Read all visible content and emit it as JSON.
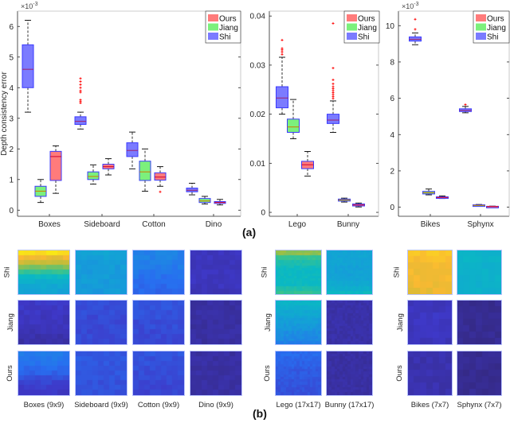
{
  "figure_labels": {
    "a": "(a)",
    "b": "(b)"
  },
  "colors": {
    "Ours": "#ff7b7b",
    "Jiang": "#7cf07c",
    "Shi": "#7b7bff",
    "box_edge": "#3a3aff",
    "median_Ours": "#cc0033",
    "median_Jiang": "#cc7a00",
    "median_Shi": "#a0206a",
    "outlier": "#ff0000",
    "whisker": "#000000"
  },
  "chart_data": [
    {
      "type": "box",
      "title": "",
      "ylabel": "Depth consistency error",
      "xlabel": "",
      "exponent_label": "×10-3",
      "scale": 0.001,
      "ylim": [
        -0.2,
        6.5
      ],
      "yticks": [
        0,
        1,
        2,
        3,
        4,
        5,
        6
      ],
      "ytick_labels": [
        "0",
        "1",
        "2",
        "3",
        "4",
        "5",
        "6"
      ],
      "categories": [
        "Boxes",
        "Sideboard",
        "Cotton",
        "Dino"
      ],
      "legend": {
        "entries": [
          "Ours",
          "Jiang",
          "Shi"
        ],
        "placement": "top-right"
      },
      "series": [
        {
          "name": "Shi",
          "boxes": [
            {
              "min": 3.2,
              "q1": 4.0,
              "median": 4.6,
              "q3": 5.4,
              "max": 6.2,
              "outliers": []
            },
            {
              "min": 2.65,
              "q1": 2.8,
              "median": 2.9,
              "q3": 3.05,
              "max": 3.2,
              "outliers": [
                3.5,
                3.55,
                3.6,
                3.85,
                3.9,
                4.0,
                4.1,
                4.2,
                4.3
              ]
            },
            {
              "min": 1.35,
              "q1": 1.75,
              "median": 1.95,
              "q3": 2.2,
              "max": 2.55,
              "outliers": []
            },
            {
              "min": 0.5,
              "q1": 0.6,
              "median": 0.65,
              "q3": 0.72,
              "max": 0.88,
              "outliers": []
            }
          ]
        },
        {
          "name": "Jiang",
          "boxes": [
            {
              "min": 0.25,
              "q1": 0.45,
              "median": 0.62,
              "q3": 0.78,
              "max": 1.0,
              "outliers": []
            },
            {
              "min": 0.85,
              "q1": 1.0,
              "median": 1.1,
              "q3": 1.25,
              "max": 1.48,
              "outliers": []
            },
            {
              "min": 0.62,
              "q1": 0.97,
              "median": 1.25,
              "q3": 1.6,
              "max": 2.0,
              "outliers": []
            },
            {
              "min": 0.2,
              "q1": 0.25,
              "median": 0.3,
              "q3": 0.38,
              "max": 0.45,
              "outliers": []
            }
          ]
        },
        {
          "name": "Ours",
          "boxes": [
            {
              "min": 0.55,
              "q1": 0.97,
              "median": 1.75,
              "q3": 1.92,
              "max": 2.1,
              "outliers": []
            },
            {
              "min": 1.15,
              "q1": 1.35,
              "median": 1.42,
              "q3": 1.5,
              "max": 1.68,
              "outliers": []
            },
            {
              "min": 0.78,
              "q1": 0.98,
              "median": 1.08,
              "q3": 1.22,
              "max": 1.42,
              "outliers": [
                0.6
              ]
            },
            {
              "min": 0.17,
              "q1": 0.22,
              "median": 0.25,
              "q3": 0.28,
              "max": 0.35,
              "outliers": []
            }
          ]
        }
      ]
    },
    {
      "type": "box",
      "title": "",
      "ylabel": "",
      "exponent_label": "",
      "scale": 1,
      "ylim": [
        -0.0008,
        0.041
      ],
      "yticks": [
        0,
        0.01,
        0.02,
        0.03,
        0.04
      ],
      "ytick_labels": [
        "0",
        "0.01",
        "0.02",
        "0.03",
        "0.04"
      ],
      "categories": [
        "Lego",
        "Bunny"
      ],
      "legend": {
        "entries": [
          "Ours",
          "Jiang",
          "Shi"
        ],
        "placement": "top-right"
      },
      "series": [
        {
          "name": "Shi",
          "boxes": [
            {
              "min": 0.02,
              "q1": 0.0213,
              "median": 0.0233,
              "q3": 0.0256,
              "max": 0.0316,
              "outliers": [
                0.0322,
                0.0327,
                0.0331,
                0.0334,
                0.0351
              ]
            },
            {
              "min": 0.0163,
              "q1": 0.0181,
              "median": 0.0188,
              "q3": 0.02,
              "max": 0.0227,
              "outliers": [
                0.0232,
                0.0236,
                0.024,
                0.0244,
                0.0248,
                0.0252,
                0.0256,
                0.0262,
                0.027,
                0.0294,
                0.0385
              ]
            }
          ]
        },
        {
          "name": "Jiang",
          "boxes": [
            {
              "min": 0.015,
              "q1": 0.0163,
              "median": 0.0174,
              "q3": 0.019,
              "max": 0.023,
              "outliers": []
            },
            {
              "min": 0.0021,
              "q1": 0.0023,
              "median": 0.0025,
              "q3": 0.0027,
              "max": 0.0029,
              "outliers": []
            }
          ]
        },
        {
          "name": "Ours",
          "boxes": [
            {
              "min": 0.0074,
              "q1": 0.0089,
              "median": 0.0097,
              "q3": 0.0104,
              "max": 0.0124,
              "outliers": []
            },
            {
              "min": 0.0011,
              "q1": 0.0013,
              "median": 0.0015,
              "q3": 0.0017,
              "max": 0.0019,
              "outliers": []
            }
          ]
        }
      ]
    },
    {
      "type": "box",
      "title": "",
      "ylabel": "",
      "exponent_label": "×10-3",
      "scale": 0.001,
      "ylim": [
        -0.5,
        10.8
      ],
      "yticks": [
        0,
        2,
        4,
        6,
        8,
        10
      ],
      "ytick_labels": [
        "0",
        "2",
        "4",
        "6",
        "8",
        "10"
      ],
      "categories": [
        "Bikes",
        "Sphynx"
      ],
      "legend": {
        "entries": [
          "Ours",
          "Jiang",
          "Shi"
        ],
        "placement": "top-right"
      },
      "series": [
        {
          "name": "Shi",
          "boxes": [
            {
              "min": 8.95,
              "q1": 9.15,
              "median": 9.25,
              "q3": 9.38,
              "max": 9.6,
              "outliers": [
                9.8,
                10.35
              ]
            },
            {
              "min": 5.2,
              "q1": 5.27,
              "median": 5.33,
              "q3": 5.42,
              "max": 5.55,
              "outliers": [
                5.65
              ]
            }
          ]
        },
        {
          "name": "Jiang",
          "boxes": [
            {
              "min": 0.68,
              "q1": 0.73,
              "median": 0.8,
              "q3": 0.87,
              "max": 1.0,
              "outliers": []
            },
            {
              "min": 0.06,
              "q1": 0.08,
              "median": 0.1,
              "q3": 0.13,
              "max": 0.15,
              "outliers": []
            }
          ]
        },
        {
          "name": "Ours",
          "boxes": [
            {
              "min": 0.48,
              "q1": 0.51,
              "median": 0.54,
              "q3": 0.57,
              "max": 0.62,
              "outliers": []
            },
            {
              "min": 0.02,
              "q1": 0.03,
              "median": 0.04,
              "q3": 0.05,
              "max": 0.06,
              "outliers": []
            }
          ]
        }
      ]
    },
    {
      "type": "heatmap",
      "row_labels": [
        "Shi",
        "Jiang",
        "Ours"
      ],
      "groups": [
        {
          "columns": [
            {
              "label": "Boxes (9x9)",
              "grid": 9,
              "levels": {
                "Shi": [
                  0.95,
                  0.85,
                  0.8,
                  0.7,
                  0.6,
                  0.5,
                  0.45,
                  0.42,
                  0.4
                ],
                "Jiang": [
                  0.12,
                  0.12,
                  0.11,
                  0.1,
                  0.1,
                  0.09,
                  0.08,
                  0.07,
                  0.06
                ],
                "Ours": [
                  0.28,
                  0.27,
                  0.26,
                  0.24,
                  0.22,
                  0.18,
                  0.15,
                  0.13,
                  0.11
                ]
              }
            },
            {
              "label": "Sideboard (9x9)",
              "grid": 9,
              "levels": {
                "Shi": [
                  0.4,
                  0.38,
                  0.37,
                  0.37,
                  0.37,
                  0.37,
                  0.37,
                  0.37,
                  0.37
                ],
                "Jiang": [
                  0.17,
                  0.17,
                  0.17,
                  0.16,
                  0.16,
                  0.16,
                  0.16,
                  0.16,
                  0.16
                ],
                "Ours": [
                  0.2,
                  0.2,
                  0.19,
                  0.19,
                  0.19,
                  0.19,
                  0.18,
                  0.18,
                  0.18
                ]
              }
            },
            {
              "label": "Cotton (9x9)",
              "grid": 9,
              "levels": {
                "Shi": [
                  0.3,
                  0.3,
                  0.29,
                  0.28,
                  0.27,
                  0.26,
                  0.25,
                  0.24,
                  0.23
                ],
                "Jiang": [
                  0.19,
                  0.19,
                  0.18,
                  0.18,
                  0.17,
                  0.17,
                  0.16,
                  0.16,
                  0.15
                ],
                "Ours": [
                  0.19,
                  0.18,
                  0.18,
                  0.17,
                  0.17,
                  0.16,
                  0.16,
                  0.15,
                  0.15
                ]
              }
            },
            {
              "label": "Dino (9x9)",
              "grid": 9,
              "levels": {
                "Shi": [
                  0.1,
                  0.1,
                  0.1,
                  0.1,
                  0.1,
                  0.1,
                  0.1,
                  0.1,
                  0.09
                ],
                "Jiang": [
                  0.05,
                  0.05,
                  0.05,
                  0.05,
                  0.05,
                  0.05,
                  0.05,
                  0.05,
                  0.05
                ],
                "Ours": [
                  0.05,
                  0.05,
                  0.05,
                  0.05,
                  0.05,
                  0.05,
                  0.05,
                  0.05,
                  0.05
                ]
              }
            }
          ]
        },
        {
          "columns": [
            {
              "label": "Lego (17x17)",
              "grid": 17,
              "levels": {
                "Shi": [
                  0.72,
                  0.6,
                  0.55,
                  0.52,
                  0.5,
                  0.5,
                  0.5,
                  0.5,
                  0.55,
                  0.6
                ],
                "Jiang": [
                  0.48,
                  0.45,
                  0.42,
                  0.4,
                  0.38,
                  0.36,
                  0.35,
                  0.33,
                  0.32,
                  0.3
                ],
                "Ours": [
                  0.24,
                  0.23,
                  0.22,
                  0.21,
                  0.2,
                  0.2,
                  0.19,
                  0.19,
                  0.18,
                  0.18
                ]
              }
            },
            {
              "label": "Bunny (17x17)",
              "grid": 17,
              "levels": {
                "Shi": [
                  0.4,
                  0.4,
                  0.4,
                  0.39,
                  0.39,
                  0.39,
                  0.4,
                  0.42,
                  0.45,
                  0.5
                ],
                "Jiang": [
                  0.06,
                  0.06,
                  0.06,
                  0.06,
                  0.06,
                  0.06,
                  0.06,
                  0.06,
                  0.06,
                  0.06
                ],
                "Ours": [
                  0.05,
                  0.05,
                  0.05,
                  0.05,
                  0.05,
                  0.05,
                  0.05,
                  0.05,
                  0.05,
                  0.05
                ]
              }
            }
          ]
        },
        {
          "columns": [
            {
              "label": "Bikes (7x7)",
              "grid": 7,
              "levels": {
                "Shi": [
                  0.9,
                  0.88,
                  0.87,
                  0.86,
                  0.86,
                  0.86,
                  0.85
                ],
                "Jiang": [
                  0.1,
                  0.1,
                  0.11,
                  0.1,
                  0.1,
                  0.1,
                  0.09
                ],
                "Ours": [
                  0.07,
                  0.07,
                  0.07,
                  0.07,
                  0.07,
                  0.07,
                  0.07
                ]
              }
            },
            {
              "label": "Sphynx (7x7)",
              "grid": 7,
              "levels": {
                "Shi": [
                  0.47,
                  0.47,
                  0.46,
                  0.46,
                  0.46,
                  0.46,
                  0.46
                ],
                "Jiang": [
                  0.02,
                  0.02,
                  0.02,
                  0.02,
                  0.02,
                  0.02,
                  0.02
                ],
                "Ours": [
                  0.02,
                  0.02,
                  0.02,
                  0.02,
                  0.02,
                  0.02,
                  0.02
                ]
              }
            }
          ]
        }
      ]
    }
  ]
}
